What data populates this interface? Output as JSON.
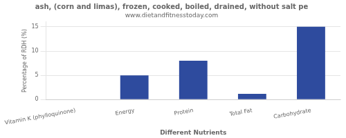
{
  "chart_data": {
    "type": "bar",
    "title": "ash, (corn and limas), frozen, cooked, boiled, drained, without salt pe",
    "subtitle": "www.dietandfitnesstoday.com",
    "xlabel": "Different Nutrients",
    "ylabel": "Percentage of RDH (%)",
    "categories": [
      "Vitamin K (phylloquinone)",
      "Energy",
      "Protein",
      "Total Fat",
      "Carbohydrate"
    ],
    "values": [
      0,
      5,
      8,
      1.2,
      15
    ],
    "color": "#2e4b9e",
    "ylim": [
      0,
      16
    ],
    "yticks": [
      0,
      5,
      10,
      15
    ],
    "grid": true
  }
}
